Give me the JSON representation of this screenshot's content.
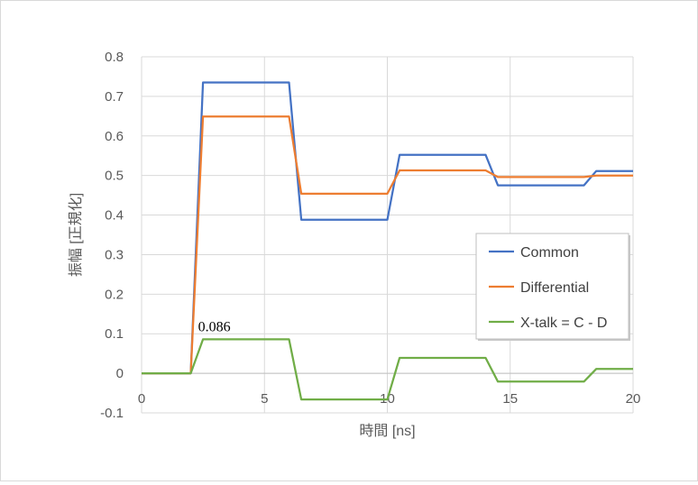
{
  "chart_data": {
    "type": "line",
    "title": "",
    "xlabel": "時間 [ns]",
    "ylabel": "振幅 [正規化]",
    "xlim": [
      0,
      20
    ],
    "ylim": [
      -0.1,
      0.8
    ],
    "xticks": [
      0,
      5,
      10,
      15,
      20
    ],
    "yticks": [
      -0.1,
      0,
      0.1,
      0.2,
      0.3,
      0.4,
      0.5,
      0.6,
      0.7,
      0.8
    ],
    "ytick_labels": [
      "-0.1",
      "0",
      "0.1",
      "0.2",
      "0.3",
      "0.4",
      "0.5",
      "0.6",
      "0.7",
      "0.8"
    ],
    "xtick_labels": [
      "0",
      "5",
      "10",
      "15",
      "20"
    ],
    "grid": "vertical-and-horizontal",
    "legend_position": "right",
    "annotation": {
      "text": "0.086",
      "x": 3.4,
      "y": 0.086
    },
    "series": [
      {
        "name": "Common",
        "color": "#4472c4",
        "points": [
          [
            0,
            0
          ],
          [
            2,
            0
          ],
          [
            2.5,
            0.735
          ],
          [
            6,
            0.735
          ],
          [
            6.5,
            0.388
          ],
          [
            10,
            0.388
          ],
          [
            10.5,
            0.552
          ],
          [
            14,
            0.552
          ],
          [
            14.5,
            0.475
          ],
          [
            18,
            0.475
          ],
          [
            18.5,
            0.511
          ],
          [
            20,
            0.511
          ]
        ]
      },
      {
        "name": "Differential",
        "color": "#ed7d31",
        "points": [
          [
            0,
            0
          ],
          [
            2,
            0
          ],
          [
            2.5,
            0.649
          ],
          [
            6,
            0.649
          ],
          [
            6.5,
            0.454
          ],
          [
            10,
            0.454
          ],
          [
            10.5,
            0.513
          ],
          [
            14,
            0.513
          ],
          [
            14.5,
            0.496
          ],
          [
            18,
            0.496
          ],
          [
            18.5,
            0.5
          ],
          [
            20,
            0.5
          ]
        ]
      },
      {
        "name": "X-talk = C - D",
        "color": "#70ad47",
        "points": [
          [
            0,
            0
          ],
          [
            2,
            0
          ],
          [
            2.5,
            0.086
          ],
          [
            6,
            0.086
          ],
          [
            6.5,
            -0.066
          ],
          [
            10,
            -0.066
          ],
          [
            10.5,
            0.039
          ],
          [
            14,
            0.039
          ],
          [
            14.5,
            -0.021
          ],
          [
            18,
            -0.021
          ],
          [
            18.5,
            0.011
          ],
          [
            20,
            0.011
          ]
        ]
      }
    ]
  }
}
